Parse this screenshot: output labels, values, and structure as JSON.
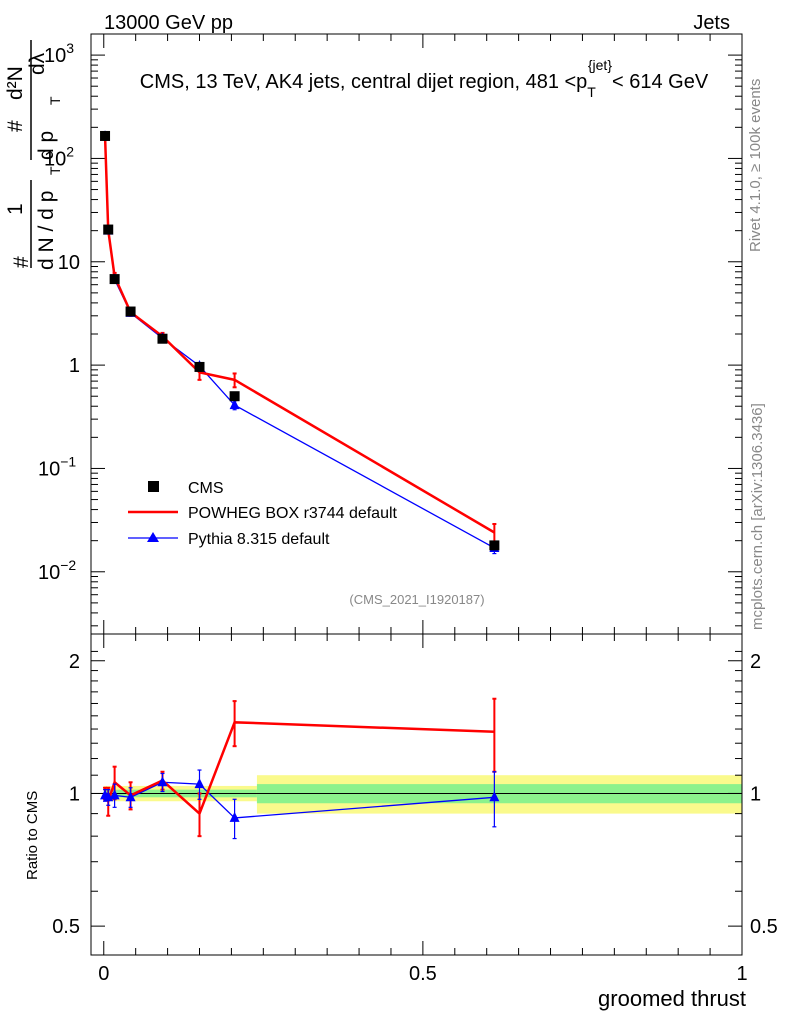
{
  "header": {
    "left_label": "13000 GeV pp",
    "right_label": "Jets"
  },
  "side_labels": {
    "rivet": "Rivet 4.1.0, ≥ 100k events",
    "mcplots": "mcplots.cern.ch [arXiv:1306.3436]"
  },
  "chart_data": [
    {
      "type": "line",
      "title": "CMS, 13 TeV, AK4 jets, central dijet region, 481 <p_T^{jet}< 614 GeV",
      "title_parts": {
        "pre": "CMS, 13 TeV, AK4 jets, central dijet region, 481 <p",
        "sub": "T",
        "sup": "{jet}",
        "post": "< 614 GeV"
      },
      "ylabel": "1/dN/dp_T d²N/dp_T dλ",
      "ylabel_parts": {
        "num_one": "1",
        "den_one": "d N / d p",
        "num_two": "d²N",
        "den_two": "d p",
        "lambda": "dλ",
        "sub_t": "T",
        "hash": "#"
      },
      "yscale": "log",
      "ylim": [
        0.0025,
        1600
      ],
      "xlim": [
        -0.02,
        1.0
      ],
      "yticks": [
        {
          "value": 0.01,
          "base": "10",
          "exp": "−2"
        },
        {
          "value": 0.1,
          "base": "10",
          "exp": "−1"
        },
        {
          "value": 1,
          "base": "1",
          "exp": ""
        },
        {
          "value": 10,
          "base": "10",
          "exp": ""
        },
        {
          "value": 100,
          "base": "10",
          "exp": "2"
        },
        {
          "value": 1000,
          "base": "10",
          "exp": "3"
        }
      ],
      "watermark": "(CMS_2021_I1920187)",
      "legend_position": "bottom-left",
      "series": [
        {
          "name": "CMS",
          "style": "markers",
          "marker": "square",
          "color": "#000000",
          "x": [
            0.002,
            0.007,
            0.017,
            0.042,
            0.092,
            0.15,
            0.205,
            0.612
          ],
          "y": [
            165,
            20.5,
            6.8,
            3.3,
            1.8,
            0.96,
            0.5,
            0.018
          ],
          "yerr": [
            6,
            1.0,
            0.4,
            0.2,
            0.1,
            0.06,
            0.05,
            0.0015
          ]
        },
        {
          "name": "POWHEG BOX r3744 default",
          "style": "line",
          "color": "#ff0000",
          "x": [
            0.002,
            0.007,
            0.017,
            0.042,
            0.092,
            0.15,
            0.205,
            0.612
          ],
          "y": [
            165,
            20.2,
            7.2,
            3.25,
            1.9,
            0.85,
            0.72,
            0.024
          ],
          "yerr": [
            5,
            1.2,
            0.6,
            0.25,
            0.15,
            0.13,
            0.11,
            0.005
          ]
        },
        {
          "name": "Pythia 8.315 default",
          "style": "line-marker",
          "marker": "triangle",
          "color": "#0000ff",
          "x": [
            0.002,
            0.007,
            0.017,
            0.042,
            0.092,
            0.15,
            0.205,
            0.612
          ],
          "y": [
            164,
            20.0,
            6.75,
            3.2,
            1.82,
            0.98,
            0.41,
            0.017
          ],
          "yerr": [
            5,
            1.0,
            0.4,
            0.18,
            0.1,
            0.06,
            0.04,
            0.002
          ]
        }
      ]
    },
    {
      "type": "line",
      "title": "",
      "ylabel": "Ratio to CMS",
      "xlabel": "groomed thrust",
      "ylim": [
        0.43,
        2.3
      ],
      "xlim": [
        -0.02,
        1.0
      ],
      "yticks": [
        {
          "value": 0.5,
          "label": "0.5"
        },
        {
          "value": 1,
          "label": "1"
        },
        {
          "value": 2,
          "label": "2"
        }
      ],
      "xticks": [
        {
          "value": 0,
          "label": "0"
        },
        {
          "value": 0.5,
          "label": "0.5"
        },
        {
          "value": 1,
          "label": "1"
        }
      ],
      "bands": [
        {
          "x0": 0.0,
          "x1": 0.24,
          "stat": 0.02,
          "total": 0.04
        },
        {
          "x0": 0.24,
          "x1": 1.0,
          "stat": 0.05,
          "total": 0.1
        }
      ],
      "band_colors": {
        "stat": "#8cf28c",
        "total": "#fafa8c"
      },
      "series": [
        {
          "name": "POWHEG BOX r3744 default",
          "color": "#ff0000",
          "x": [
            0.002,
            0.007,
            0.017,
            0.042,
            0.092,
            0.15,
            0.205,
            0.612
          ],
          "y": [
            1.0,
            0.96,
            1.06,
            0.99,
            1.07,
            0.9,
            1.45,
            1.38
          ],
          "yerr": [
            0.03,
            0.07,
            0.09,
            0.07,
            0.05,
            0.1,
            0.17,
            0.26
          ]
        },
        {
          "name": "Pythia 8.315 default",
          "color": "#0000ff",
          "marker": "triangle",
          "x": [
            0.002,
            0.007,
            0.017,
            0.042,
            0.092,
            0.15,
            0.205,
            0.612
          ],
          "y": [
            0.99,
            0.98,
            0.99,
            0.98,
            1.06,
            1.05,
            0.88,
            0.98
          ],
          "yerr": [
            0.03,
            0.04,
            0.06,
            0.05,
            0.05,
            0.08,
            0.09,
            0.14
          ]
        }
      ]
    }
  ]
}
